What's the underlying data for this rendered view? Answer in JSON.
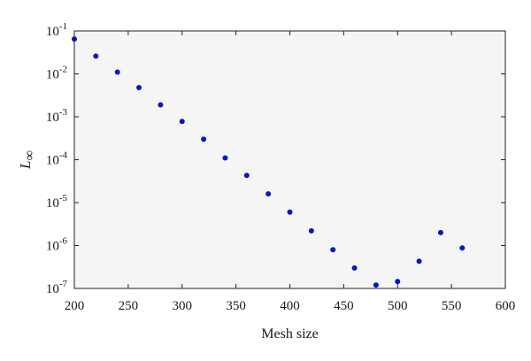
{
  "chart_data": {
    "type": "scatter",
    "xlabel": "Mesh size",
    "ylabel": "L",
    "ylabel_subscript": "∞",
    "xscale": "linear",
    "yscale": "log",
    "xlim": [
      200,
      600
    ],
    "ylim": [
      1e-07,
      0.1
    ],
    "xticks": [
      200,
      250,
      300,
      350,
      400,
      450,
      500,
      550,
      600
    ],
    "xtick_labels": [
      "200",
      "250",
      "300",
      "350",
      "400",
      "450",
      "500",
      "550",
      "600"
    ],
    "yticks": [
      1e-07,
      1e-06,
      1e-05,
      0.0001,
      0.001,
      0.01,
      0.1
    ],
    "ytick_labels": [
      {
        "base": "10",
        "exp": "-7"
      },
      {
        "base": "10",
        "exp": "-6"
      },
      {
        "base": "10",
        "exp": "-5"
      },
      {
        "base": "10",
        "exp": "-4"
      },
      {
        "base": "10",
        "exp": "-3"
      },
      {
        "base": "10",
        "exp": "-2"
      },
      {
        "base": "10",
        "exp": "-1"
      }
    ],
    "grid": false,
    "marker_color": "#0a14c8",
    "plot_background": "#f5f5f5",
    "x": [
      200,
      220,
      240,
      260,
      280,
      300,
      320,
      340,
      360,
      380,
      400,
      420,
      440,
      460,
      480,
      500,
      520,
      540,
      560
    ],
    "y": [
      0.065,
      0.026,
      0.011,
      0.0048,
      0.0019,
      0.00078,
      0.0003,
      0.00011,
      4.3e-05,
      1.6e-05,
      6e-06,
      2.2e-06,
      8e-07,
      3e-07,
      1.2e-07,
      1.45e-07,
      4.3e-07,
      2e-06,
      8.8e-07
    ]
  }
}
